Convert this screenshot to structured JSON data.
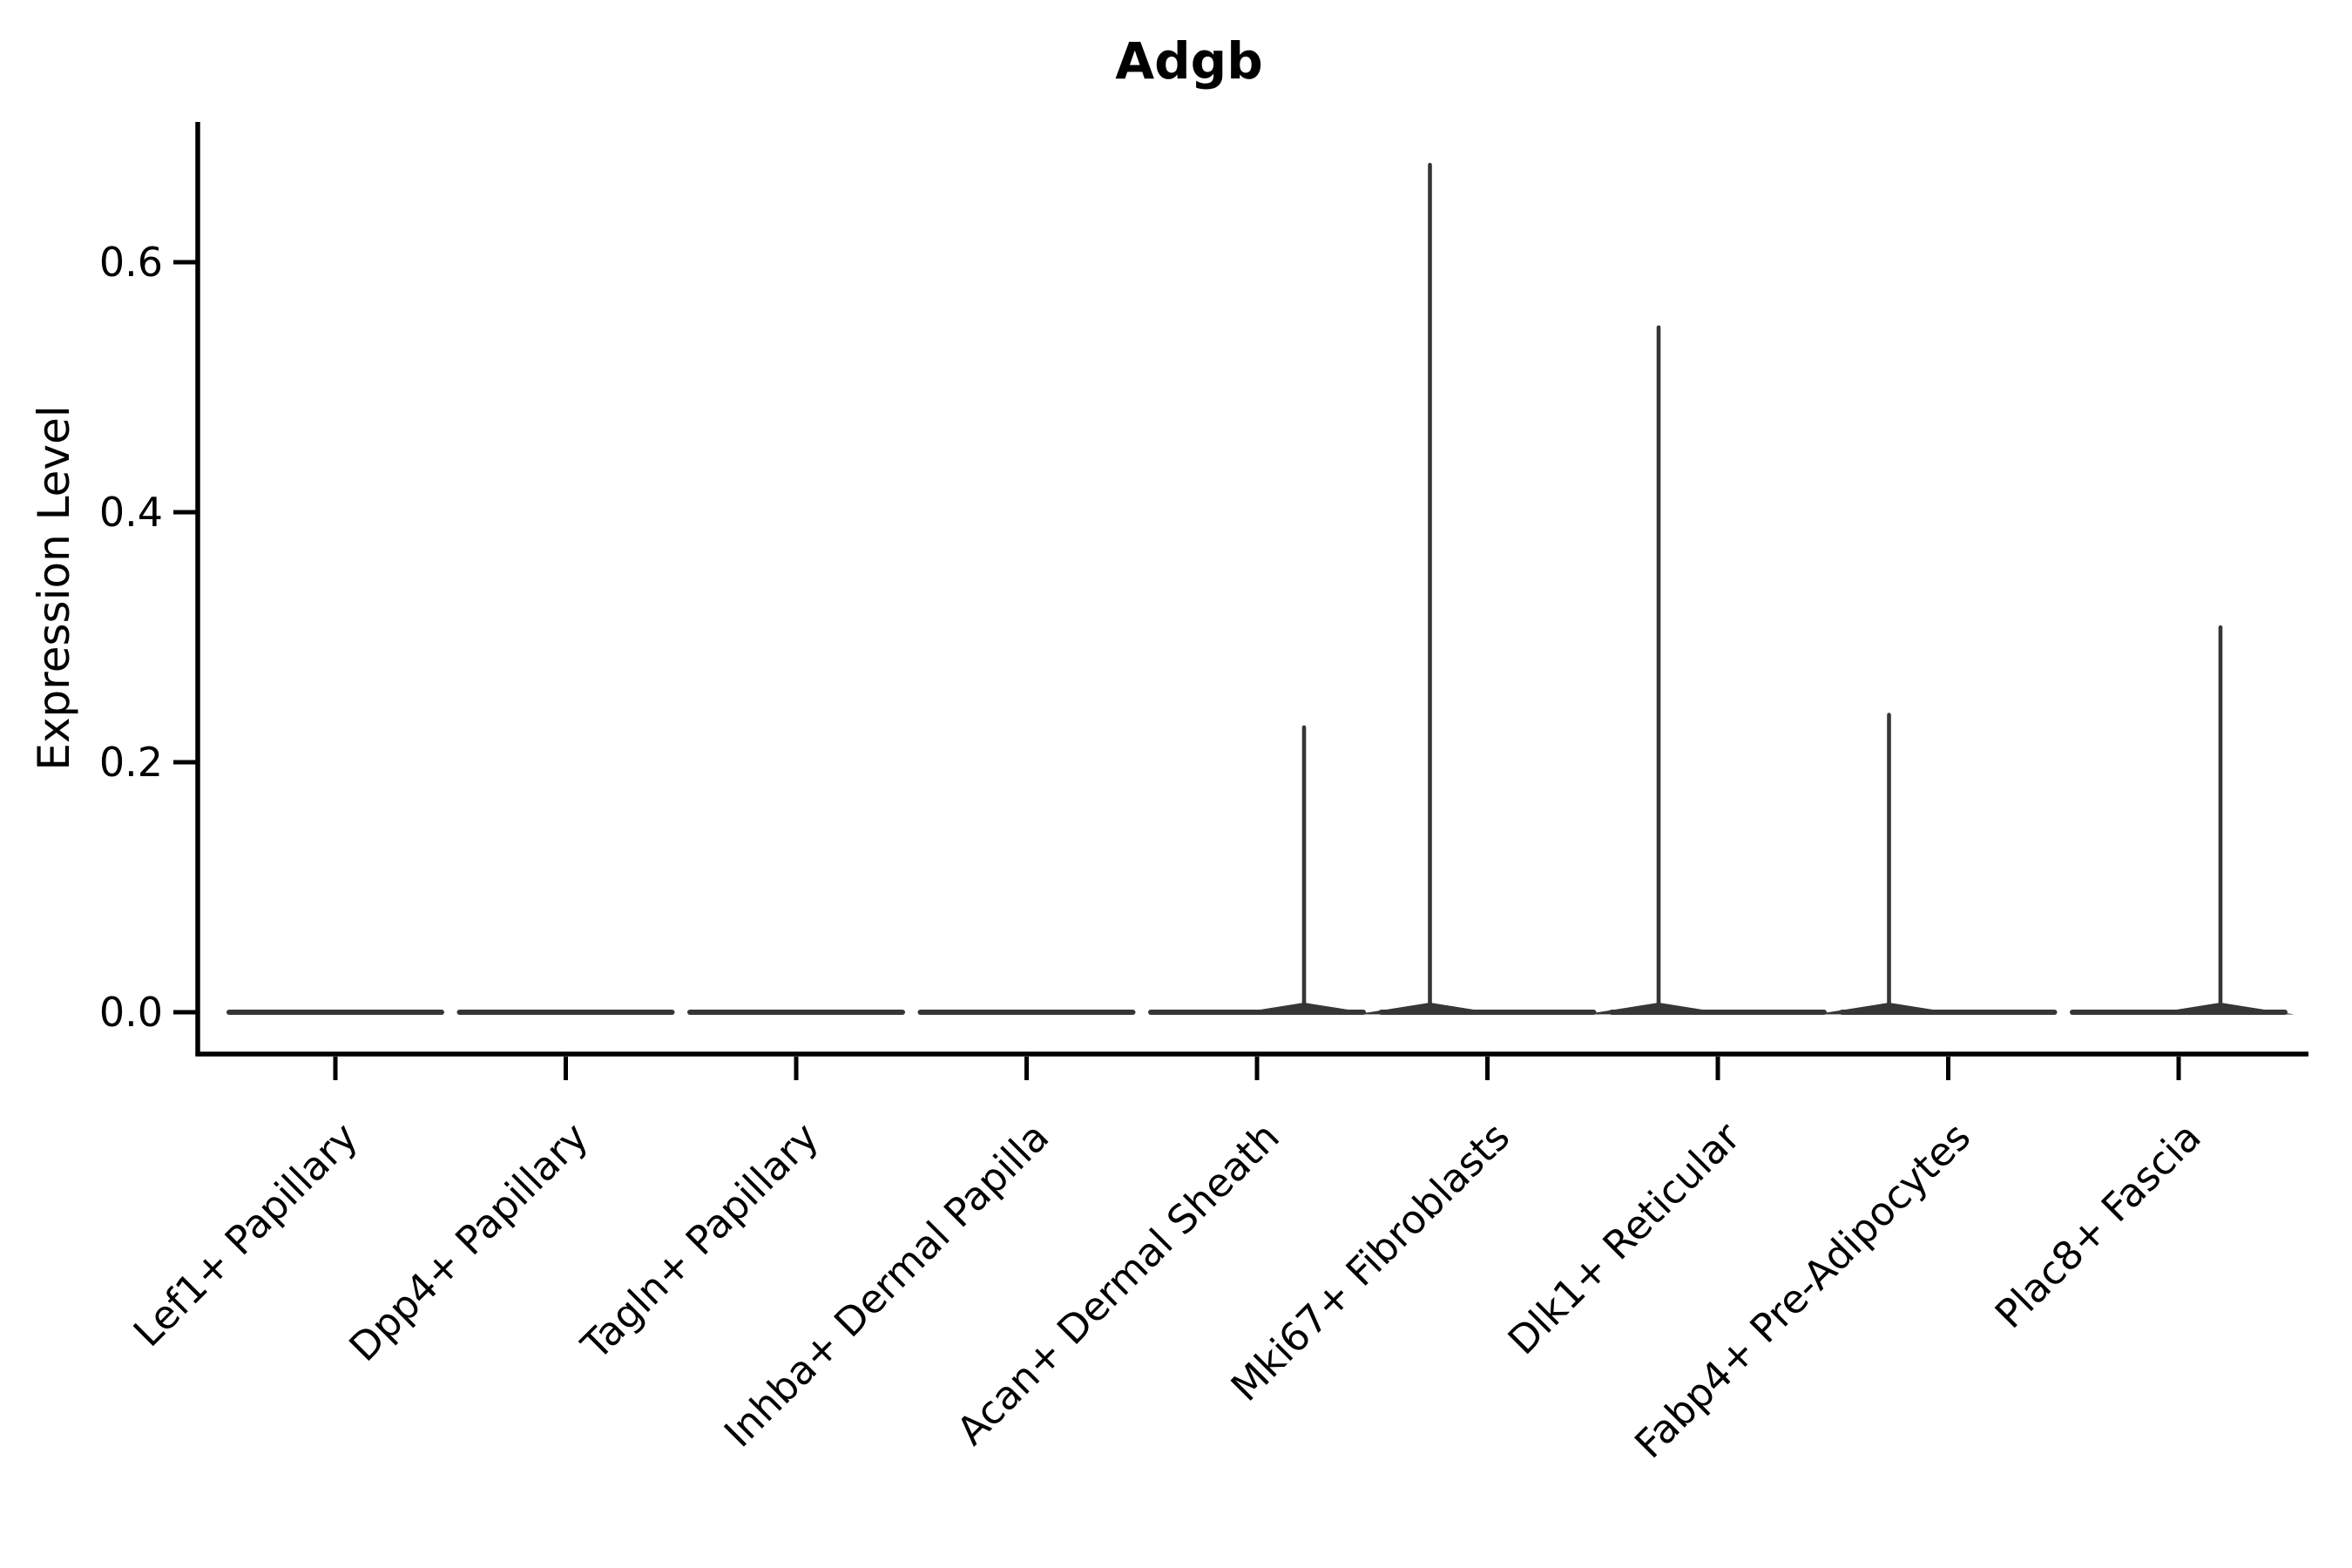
{
  "figure": {
    "title": "Adgb",
    "y_axis": {
      "label": "Expression Level",
      "tick_labels": [
        "0.0",
        "0.2",
        "0.4",
        "0.6"
      ]
    },
    "colors": {
      "axis": "#000000",
      "text": "#000000",
      "violin": "#363636",
      "background": "#ffffff"
    }
  },
  "chart_data": {
    "type": "violin",
    "title": "Adgb",
    "xlabel": "",
    "ylabel": "Expression Level",
    "ylim": [
      -0.033,
      0.712
    ],
    "yticks": [
      0.0,
      0.2,
      0.4,
      0.6
    ],
    "grid": false,
    "legend": null,
    "categories": [
      "Lef1+ Papillary",
      "Dpp4+ Papillary",
      "Tagln+ Papillary",
      "Inhba+ Dermal Papilla",
      "Acan+ Dermal Sheath",
      "Mki67+ Fibroblasts",
      "Dlk1+ Reticular",
      "Fabp4+ Pre-Adipocytes",
      "Plac8+ Fascia"
    ],
    "series": [
      {
        "name": "Adgb",
        "baseline_value": 0.0,
        "max_values": [
          0,
          0,
          0,
          0,
          0.23,
          0.68,
          0.55,
          0.24,
          0.31
        ],
        "median_values": [
          0,
          0,
          0,
          0,
          0,
          0,
          0,
          0,
          0
        ]
      }
    ]
  }
}
